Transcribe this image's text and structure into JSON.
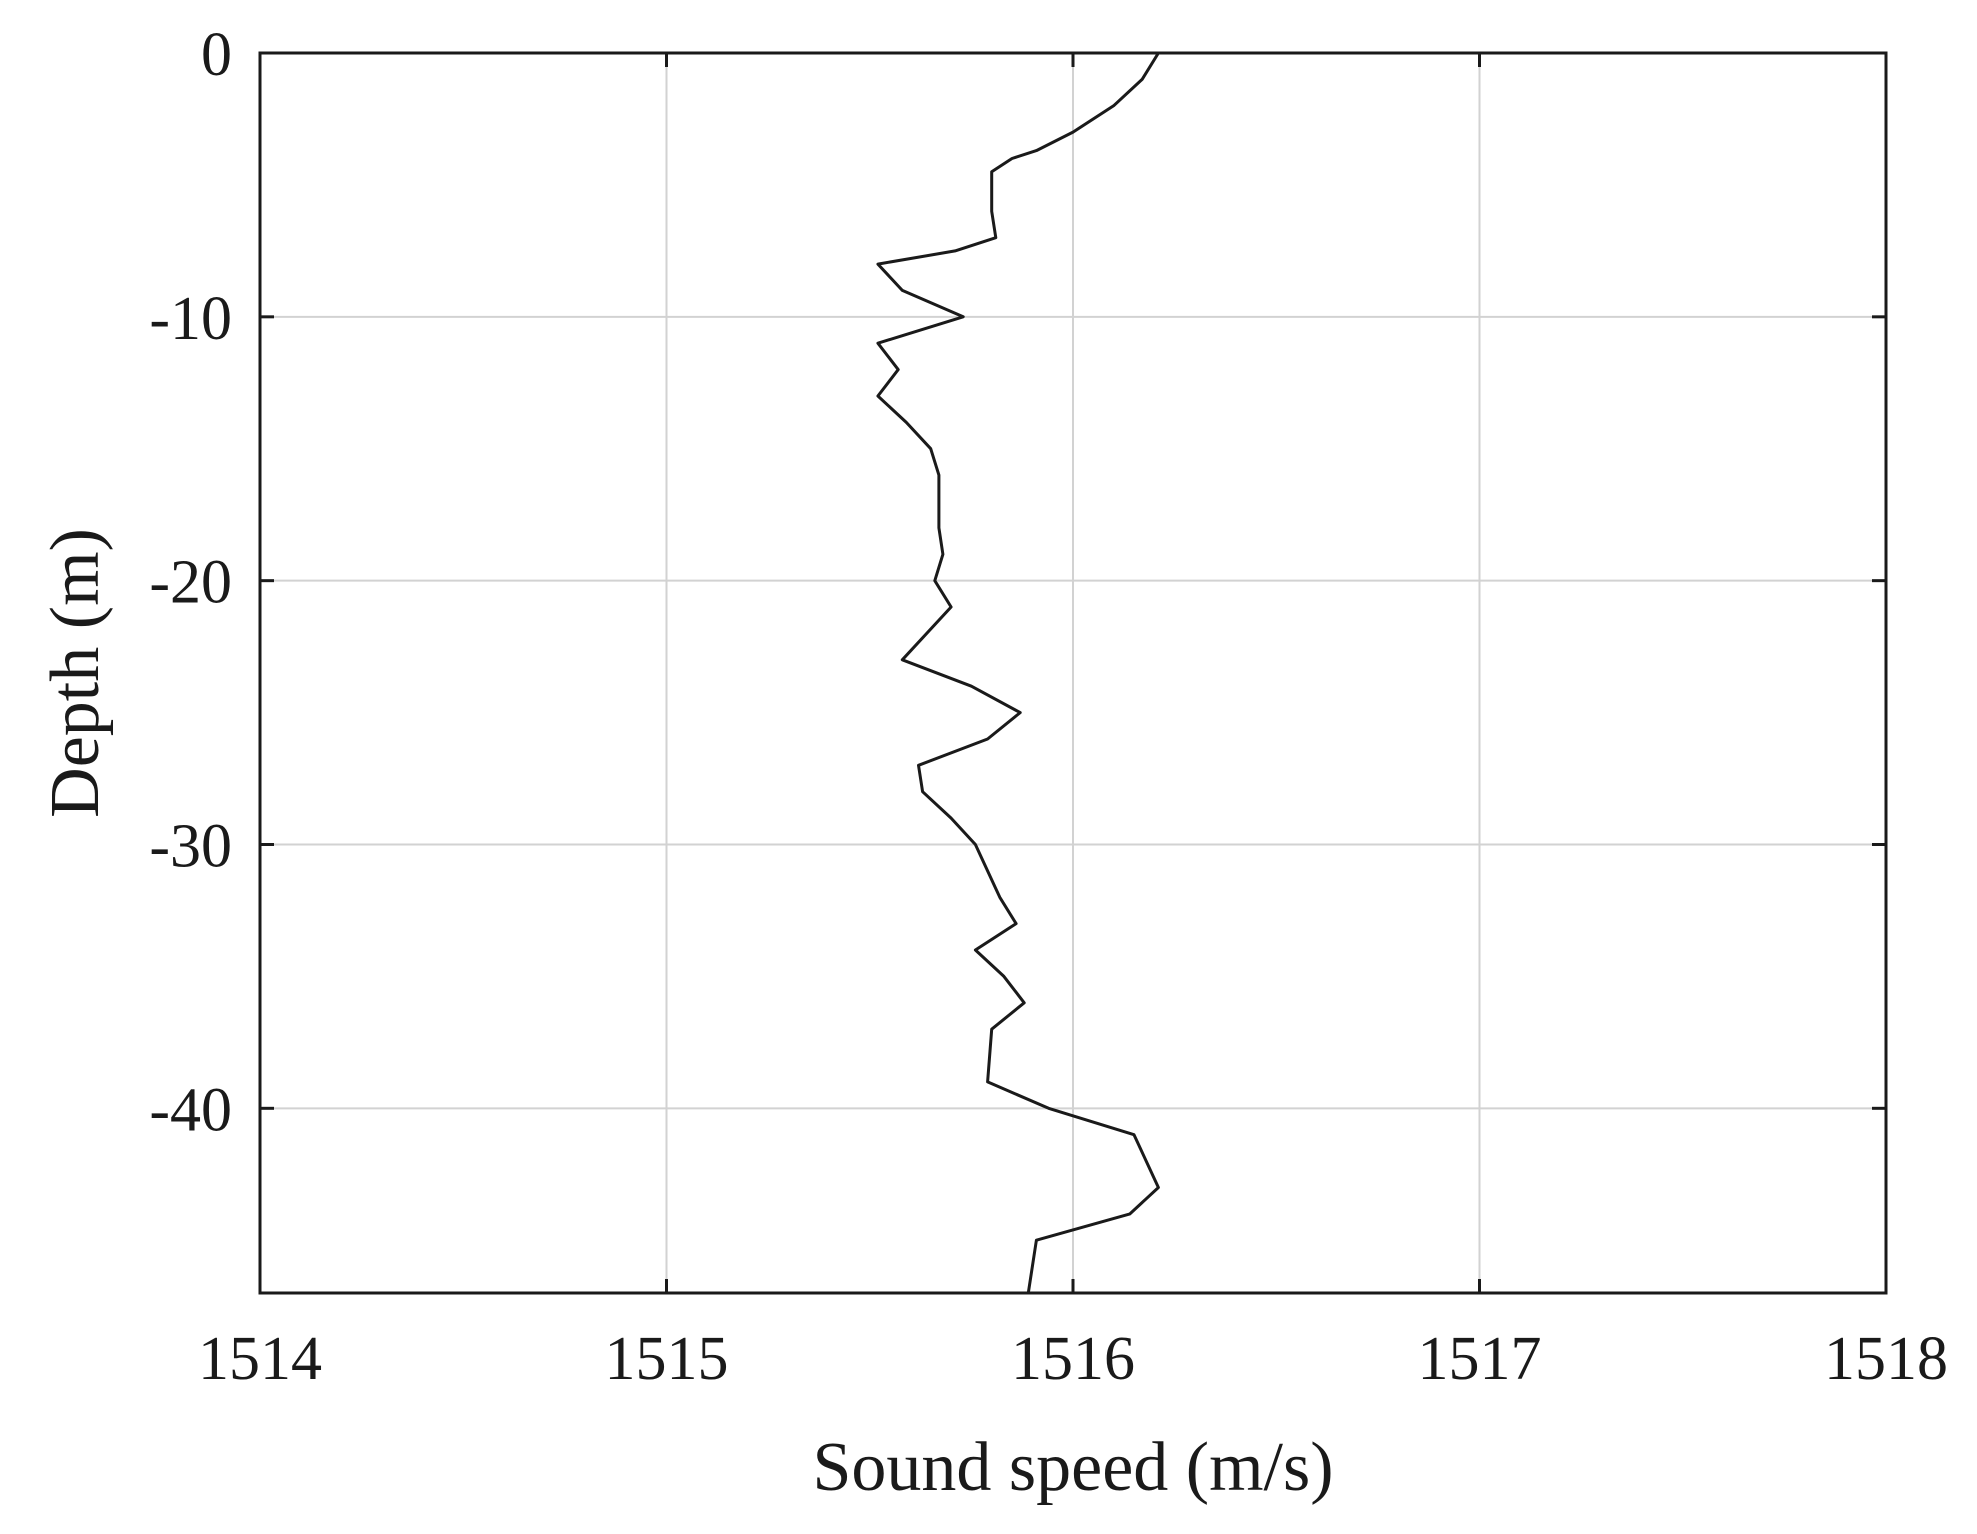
{
  "chart_data": {
    "type": "line",
    "title": "",
    "xlabel": "Sound speed (m/s)",
    "ylabel": "Depth (m)",
    "xlim": [
      1514,
      1518
    ],
    "ylim": [
      -47,
      0
    ],
    "xticks": [
      "1514",
      "1515",
      "1516",
      "1517",
      "1518"
    ],
    "yticks": [
      "0",
      "-10",
      "-20",
      "-30",
      "-40"
    ],
    "grid": true,
    "series": [
      {
        "color": "#1a1a1a",
        "x": [
          1516.21,
          1516.17,
          1516.1,
          1516.0,
          1515.91,
          1515.85,
          1515.8,
          1515.8,
          1515.81,
          1515.71,
          1515.52,
          1515.58,
          1515.73,
          1515.52,
          1515.57,
          1515.52,
          1515.59,
          1515.65,
          1515.67,
          1515.67,
          1515.68,
          1515.66,
          1515.7,
          1515.58,
          1515.75,
          1515.87,
          1515.79,
          1515.62,
          1515.63,
          1515.7,
          1515.76,
          1515.82,
          1515.86,
          1515.76,
          1515.83,
          1515.88,
          1515.8,
          1515.79,
          1515.94,
          1516.15,
          1516.18,
          1516.21,
          1516.14,
          1515.91,
          1515.89
        ],
        "y": [
          0,
          -1,
          -2,
          -3,
          -3.7,
          -4,
          -4.5,
          -6,
          -7,
          -7.5,
          -8,
          -9,
          -10,
          -11,
          -12,
          -13,
          -14,
          -15,
          -16,
          -18,
          -19,
          -20,
          -21,
          -23,
          -24,
          -25,
          -26,
          -27,
          -28,
          -29,
          -30,
          -32,
          -33,
          -34,
          -35,
          -36,
          -37,
          -39,
          -40,
          -41,
          -42,
          -43,
          -44,
          -45,
          -47
        ]
      }
    ]
  }
}
